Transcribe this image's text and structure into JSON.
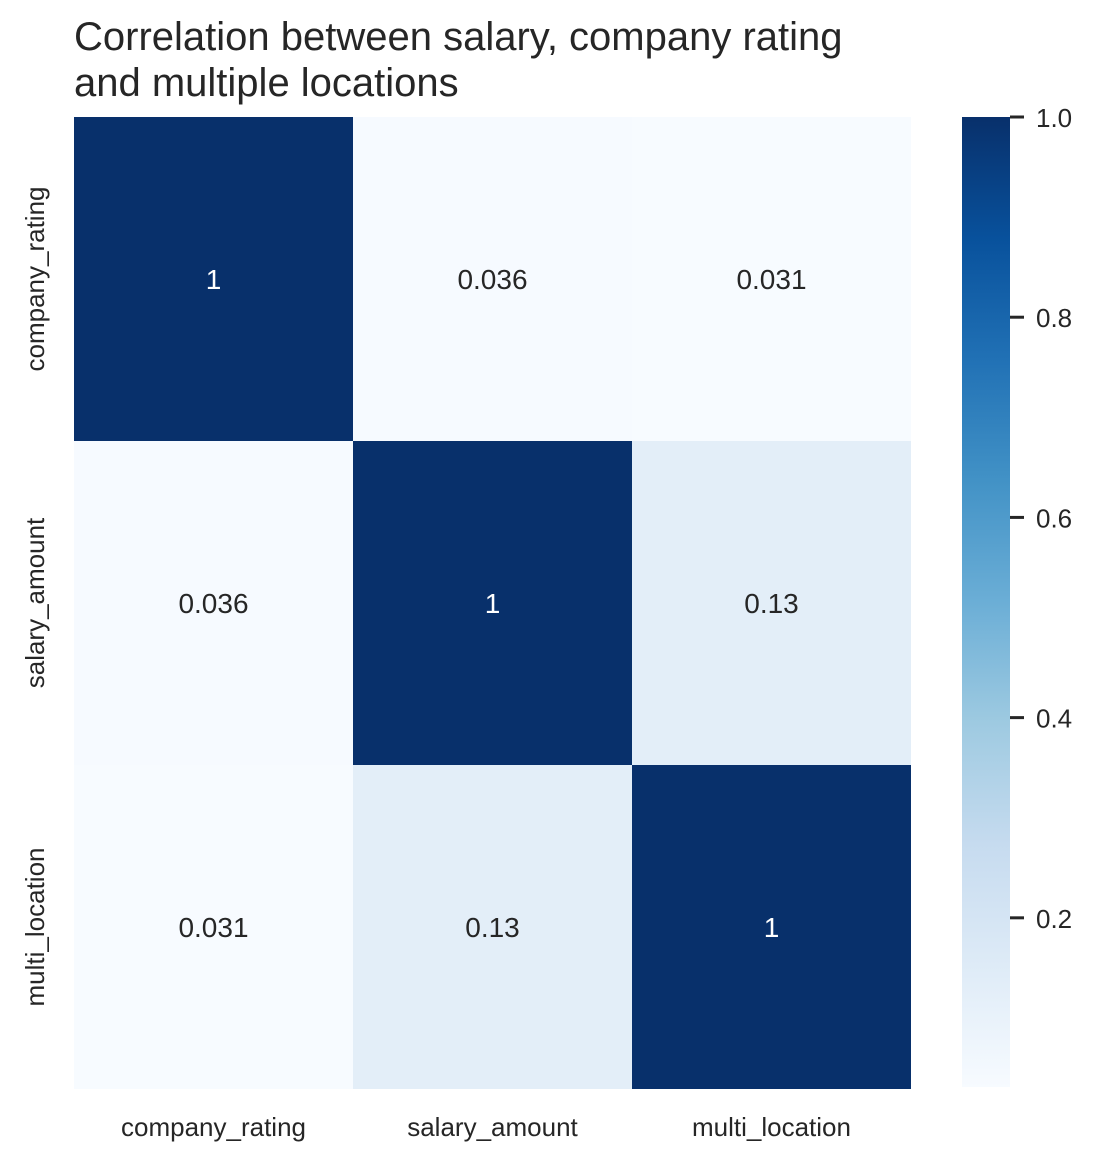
{
  "chart_data": {
    "type": "heatmap",
    "title_lines": [
      "Correlation between salary, company rating",
      "and multiple locations"
    ],
    "x_labels": [
      "company_rating",
      "salary_amount",
      "multi_location"
    ],
    "y_labels": [
      "company_rating",
      "salary_amount",
      "multi_location"
    ],
    "values": [
      [
        1,
        0.036,
        0.031
      ],
      [
        0.036,
        1,
        0.13
      ],
      [
        0.031,
        0.13,
        1
      ]
    ],
    "annotations": [
      [
        "1",
        "0.036",
        "0.031"
      ],
      [
        "0.036",
        "1",
        "0.13"
      ],
      [
        "0.031",
        "0.13",
        "1"
      ]
    ],
    "colormap": "Blues",
    "colorbar": {
      "range": [
        0.031,
        1.0
      ],
      "ticks": [
        0.2,
        0.4,
        0.6,
        0.8,
        1.0
      ],
      "tick_labels": [
        "0.2",
        "0.4",
        "0.6",
        "0.8",
        "1.0"
      ]
    },
    "colors": {
      "text_dark": "#262626",
      "text_light": "#ffffff"
    }
  }
}
